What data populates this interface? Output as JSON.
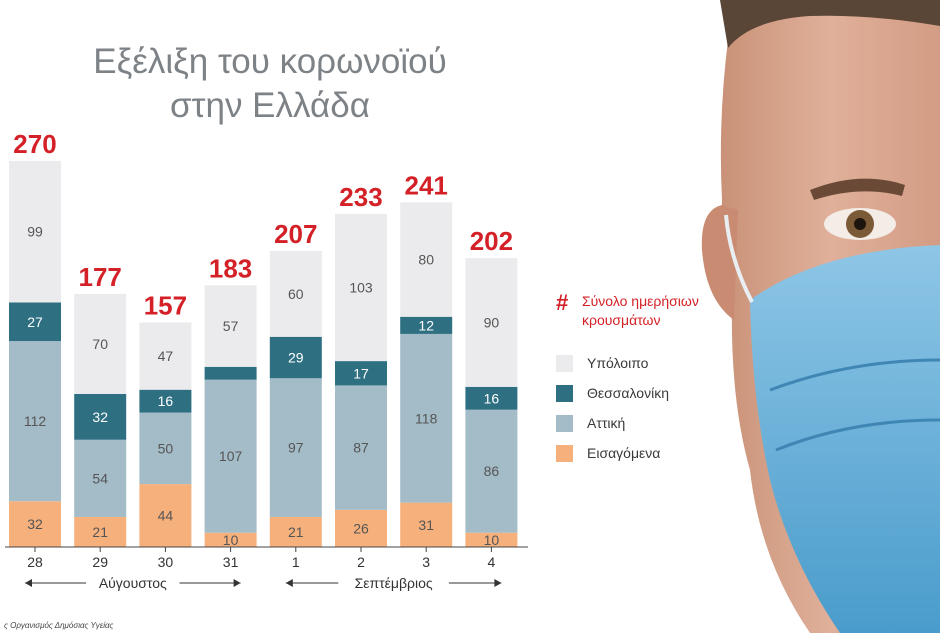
{
  "chart_data": {
    "type": "bar",
    "stacked": true,
    "title": "Εξέλιξη του κορωνοϊού στην Ελλάδα",
    "title_lines": [
      "Εξέλιξη του κορωνοϊού",
      "στην Ελλάδα"
    ],
    "categories": [
      "28",
      "29",
      "30",
      "31",
      "1",
      "2",
      "3",
      "4"
    ],
    "month_groups": [
      {
        "label": "Αύγουστος",
        "from": 0,
        "to": 3
      },
      {
        "label": "Σεπτέμβριος",
        "from": 4,
        "to": 7
      }
    ],
    "totals": [
      270,
      177,
      157,
      183,
      207,
      233,
      241,
      202
    ],
    "series": [
      {
        "name": "Εισαγόμενα",
        "color": "#f6b07c",
        "values": [
          32,
          21,
          44,
          10,
          21,
          26,
          31,
          10
        ]
      },
      {
        "name": "Αττική",
        "color": "#a3bcc8",
        "values": [
          112,
          54,
          50,
          107,
          97,
          87,
          118,
          86
        ]
      },
      {
        "name": "Θεσσαλονίκη",
        "color": "#2e6f82",
        "values": [
          27,
          32,
          16,
          9,
          29,
          17,
          12,
          16
        ]
      },
      {
        "name": "Υπόλοιπο",
        "color": "#ebebed",
        "values": [
          99,
          70,
          47,
          57,
          60,
          103,
          80,
          90
        ]
      }
    ],
    "legend_total_label": "Σύνολο ημερήσιων κρουσμάτων",
    "legend_total_symbol": "#",
    "legend_order": [
      3,
      2,
      1,
      0
    ],
    "legend_position": "right",
    "total_label_color": "#d42127",
    "grid": false
  },
  "source_text": "ς Οργανισμός Δημόσιας Υγείας"
}
